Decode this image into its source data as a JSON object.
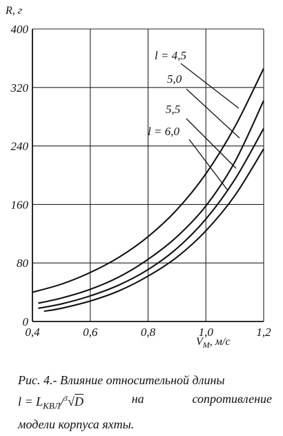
{
  "chart_data": {
    "type": "line",
    "title": "",
    "xlabel": "V_M, м/с",
    "ylabel": "R, г",
    "xlim": [
      0.4,
      1.2
    ],
    "ylim": [
      0,
      400
    ],
    "xticks": [
      0.4,
      0.6,
      0.8,
      1.0,
      1.2
    ],
    "xtick_labels": [
      "0,4",
      "0,6",
      "0,8",
      "1,0",
      "1,2"
    ],
    "yticks": [
      0,
      80,
      160,
      240,
      320,
      400
    ],
    "ytick_labels": [
      "0",
      "80",
      "160",
      "240",
      "320",
      "400"
    ],
    "grid": true,
    "series": [
      {
        "name": "l = 4,5",
        "x": [
          0.4,
          0.5,
          0.6,
          0.7,
          0.8,
          0.9,
          1.0,
          1.1,
          1.2
        ],
        "y": [
          40,
          51,
          67,
          88,
          116,
          153,
          202,
          266,
          346
        ]
      },
      {
        "name": "5,0",
        "x": [
          0.42,
          0.5,
          0.6,
          0.7,
          0.8,
          0.9,
          1.0,
          1.1,
          1.2
        ],
        "y": [
          25,
          32,
          44,
          61,
          85,
          116,
          158,
          218,
          302
        ]
      },
      {
        "name": "5,5",
        "x": [
          0.42,
          0.5,
          0.6,
          0.7,
          0.8,
          0.9,
          1.0,
          1.1,
          1.2
        ],
        "y": [
          18,
          24,
          35,
          50,
          71,
          100,
          140,
          194,
          264
        ]
      },
      {
        "name": "l = 6,0",
        "x": [
          0.44,
          0.5,
          0.6,
          0.7,
          0.8,
          0.9,
          1.0,
          1.1,
          1.2
        ],
        "y": [
          14,
          18,
          28,
          42,
          62,
          88,
          124,
          172,
          236
        ]
      }
    ]
  },
  "caption": {
    "line1": "Рис. 4.- Влияние относительной длины",
    "line2_formula": "l = L",
    "line2_sub": "КВЛ",
    "line2_div": "/",
    "line2_root_index": "3",
    "line2_root_arg": "D",
    "line2_word1": "на",
    "line2_word2": "сопротивление",
    "line3": "модели корпуса яхты."
  }
}
